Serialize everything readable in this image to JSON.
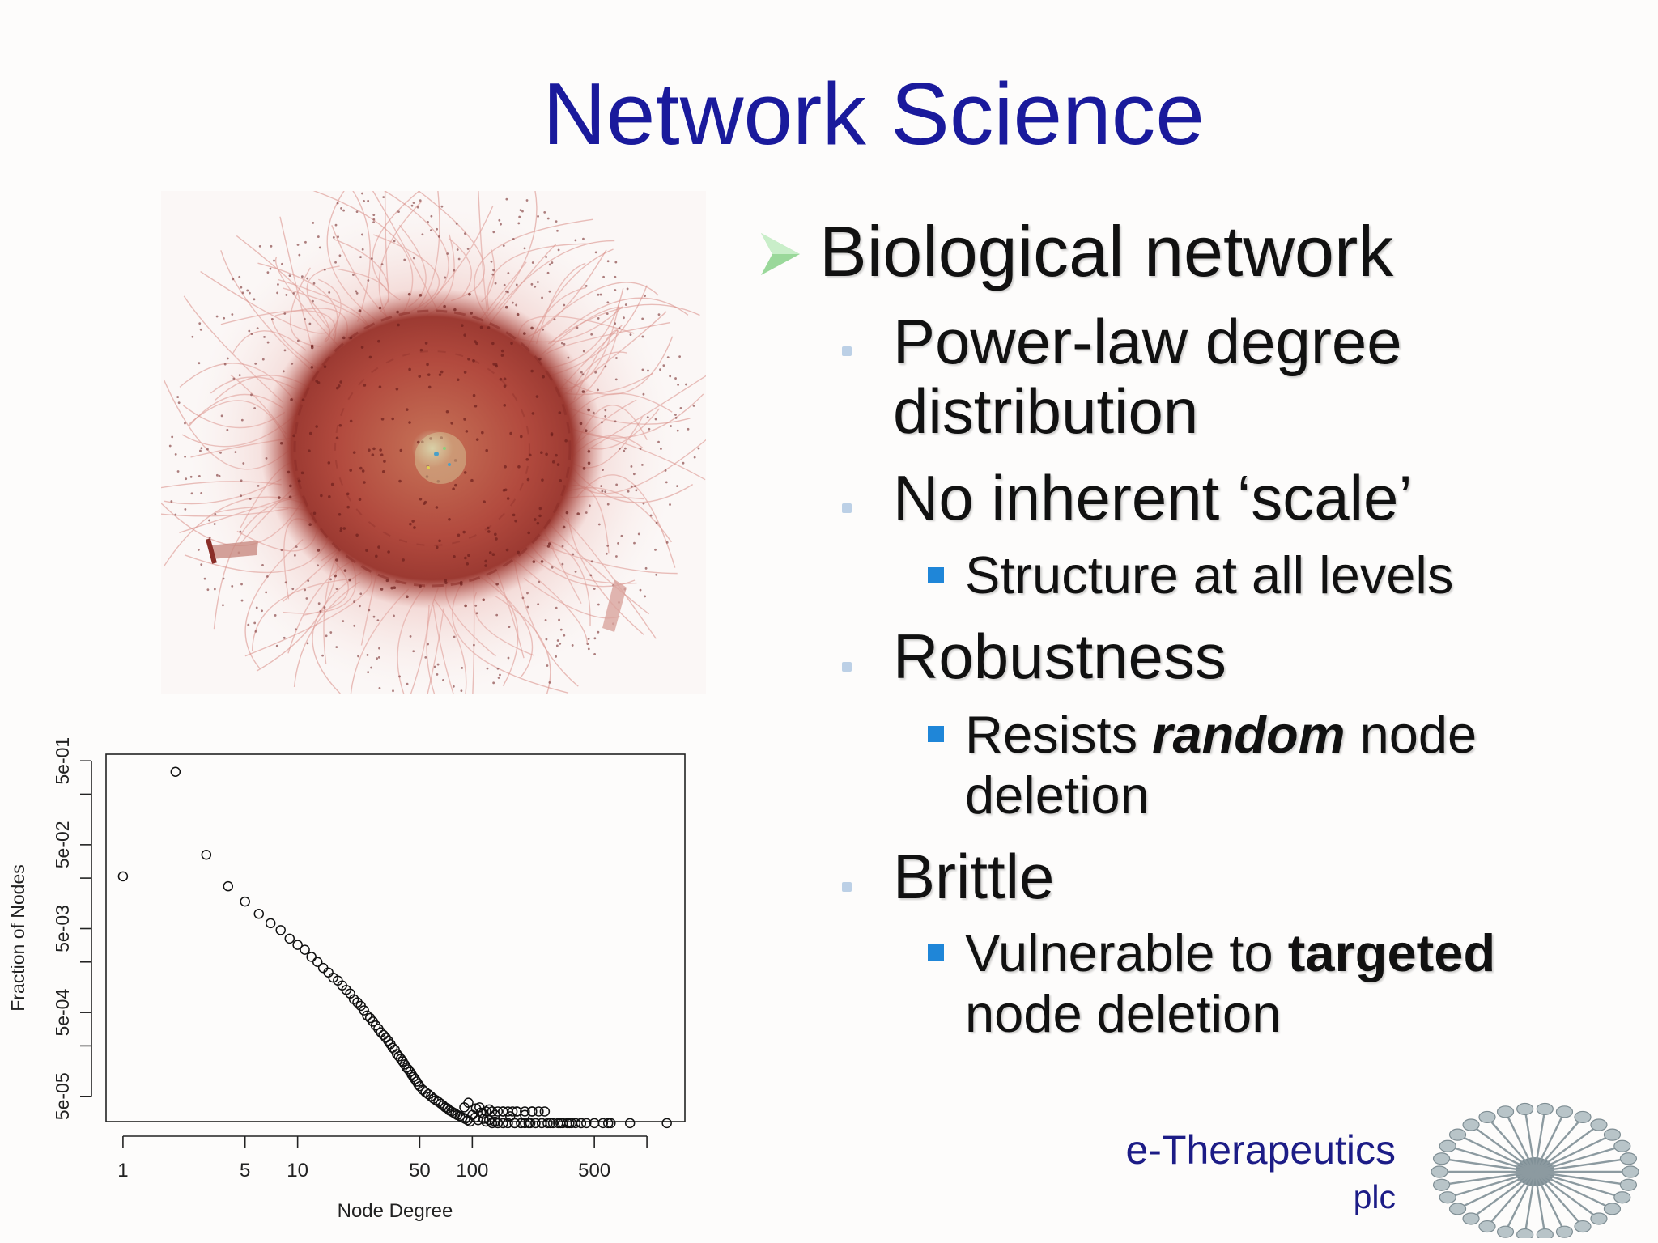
{
  "slide": {
    "title": "Network Science"
  },
  "bullets": {
    "main": "Biological network",
    "power_law_line1": "Power-law degree",
    "power_law_line2": "distribution",
    "no_scale": "No inherent ‘scale’",
    "structure": "Structure at all levels",
    "robustness": "Robustness",
    "resists_pre": "Resists ",
    "resists_em": "random",
    "resists_post": " node",
    "resists_line2": "deletion",
    "brittle": "Brittle",
    "vulnerable_pre": "Vulnerable to ",
    "vulnerable_em": "targeted",
    "vulnerable_line2": "node deletion"
  },
  "logo": {
    "name": "e-Therapeutics",
    "suffix": "plc"
  },
  "colors": {
    "title": "#1a1a9c",
    "bullet_square": "#1f86d8",
    "bullet_arrow": "#9ad89a",
    "network": "#b5443c"
  },
  "icons": {
    "main_bullet": "arrow-icon",
    "sub_bullet": "dot-icon",
    "subsub_bullet": "square-icon"
  },
  "chart_data": {
    "type": "scatter",
    "title": "",
    "xlabel": "Node Degree",
    "ylabel": "Fraction of Nodes",
    "x_scale": "log",
    "y_scale": "log",
    "x_ticks": [
      1,
      5,
      10,
      50,
      100,
      500
    ],
    "x_tick_labels": [
      "1",
      "5",
      "10",
      "50",
      "100",
      "500"
    ],
    "y_ticks": [
      5e-05,
      0.0005,
      0.005,
      0.05,
      0.5
    ],
    "y_tick_labels": [
      "5e-05",
      "5e-04",
      "5e-03",
      "5e-02",
      "5e-01"
    ],
    "xlim": [
      0.8,
      1650
    ],
    "ylim": [
      2.5e-05,
      0.6
    ],
    "grid": false,
    "series": [
      {
        "x": [
          1,
          2,
          3,
          4,
          5,
          6,
          7,
          8,
          9,
          10,
          11,
          12,
          13,
          14,
          15,
          16,
          17,
          18,
          19,
          20,
          21,
          22,
          23,
          24,
          25,
          26,
          27,
          28,
          29,
          30,
          31,
          32,
          33,
          34,
          35,
          36,
          37,
          38,
          39,
          40,
          41,
          42,
          43,
          44,
          45,
          46,
          47,
          48,
          49,
          50,
          52,
          54,
          56,
          58,
          60,
          62,
          64,
          66,
          68,
          70,
          72,
          74,
          76,
          78,
          80,
          82,
          85,
          88,
          91,
          94,
          97,
          100,
          104,
          108,
          112,
          116,
          120,
          125,
          130,
          135,
          140,
          150,
          160,
          175,
          190,
          210,
          230,
          250,
          280,
          320,
          360,
          420,
          1300,
          90,
          95,
          105,
          115,
          125,
          135,
          150,
          165,
          180,
          200,
          220,
          260,
          110,
          120,
          130,
          140,
          150,
          160,
          170,
          180,
          200,
          220,
          240,
          130,
          140,
          150,
          160,
          175,
          190,
          200,
          215,
          230,
          250,
          270,
          290,
          310,
          330,
          350,
          370,
          390,
          420,
          450,
          500,
          560,
          600,
          620,
          800
        ],
        "y": [
          0.021,
          0.37,
          0.038,
          0.016,
          0.0105,
          0.0075,
          0.0058,
          0.0048,
          0.0038,
          0.0032,
          0.0028,
          0.0023,
          0.002,
          0.0017,
          0.0015,
          0.0013,
          0.0012,
          0.00105,
          0.00093,
          0.00084,
          0.00072,
          0.00066,
          0.0006,
          0.00053,
          0.00046,
          0.00043,
          0.00039,
          0.00035,
          0.00032,
          0.00029,
          0.00027,
          0.00025,
          0.00023,
          0.00021,
          0.00019,
          0.00018,
          0.00016,
          0.00015,
          0.00014,
          0.00013,
          0.00012,
          0.00011,
          0.000105,
          9.8e-05,
          9.1e-05,
          8.5e-05,
          8e-05,
          7.5e-05,
          7e-05,
          6.6e-05,
          6e-05,
          5.6e-05,
          5.3e-05,
          5e-05,
          4.7e-05,
          4.5e-05,
          4.3e-05,
          4.1e-05,
          3.9e-05,
          3.7e-05,
          3.6e-05,
          3.4e-05,
          3.3e-05,
          3.2e-05,
          3.1e-05,
          3e-05,
          2.9e-05,
          2.8e-05,
          2.7e-05,
          2.6e-05,
          2.5e-05,
          3e-05,
          2.8e-05,
          2.6e-05,
          3.2e-05,
          2.7e-05,
          2.5e-05,
          2.6e-05,
          2.4e-05,
          2.5e-05,
          2.4e-05,
          2.4e-05,
          2.4e-05,
          2.4e-05,
          2.4e-05,
          2.4e-05,
          2.4e-05,
          2.4e-05,
          2.4e-05,
          2.4e-05,
          2.4e-05,
          2.4e-05,
          2.4e-05,
          3.7e-05,
          4.2e-05,
          3.6e-05,
          3.1e-05,
          3.5e-05,
          3e-05,
          3.3e-05,
          2.9e-05,
          3.3e-05,
          3e-05,
          3.3e-05,
          3.3e-05,
          3.7e-05,
          3.3e-05,
          3.3e-05,
          3.3e-05,
          3.3e-05,
          3.3e-05,
          3.3e-05,
          3.3e-05,
          3.3e-05,
          3.3e-05,
          3.3e-05,
          2.4e-05,
          2.4e-05,
          2.4e-05,
          2.4e-05,
          2.4e-05,
          2.4e-05,
          2.4e-05,
          2.4e-05,
          2.4e-05,
          2.4e-05,
          2.4e-05,
          2.4e-05,
          2.4e-05,
          2.4e-05,
          2.4e-05,
          2.4e-05,
          2.4e-05,
          2.4e-05,
          2.4e-05,
          2.4e-05,
          2.4e-05,
          2.4e-05,
          2.4e-05,
          2.4e-05
        ]
      }
    ]
  }
}
